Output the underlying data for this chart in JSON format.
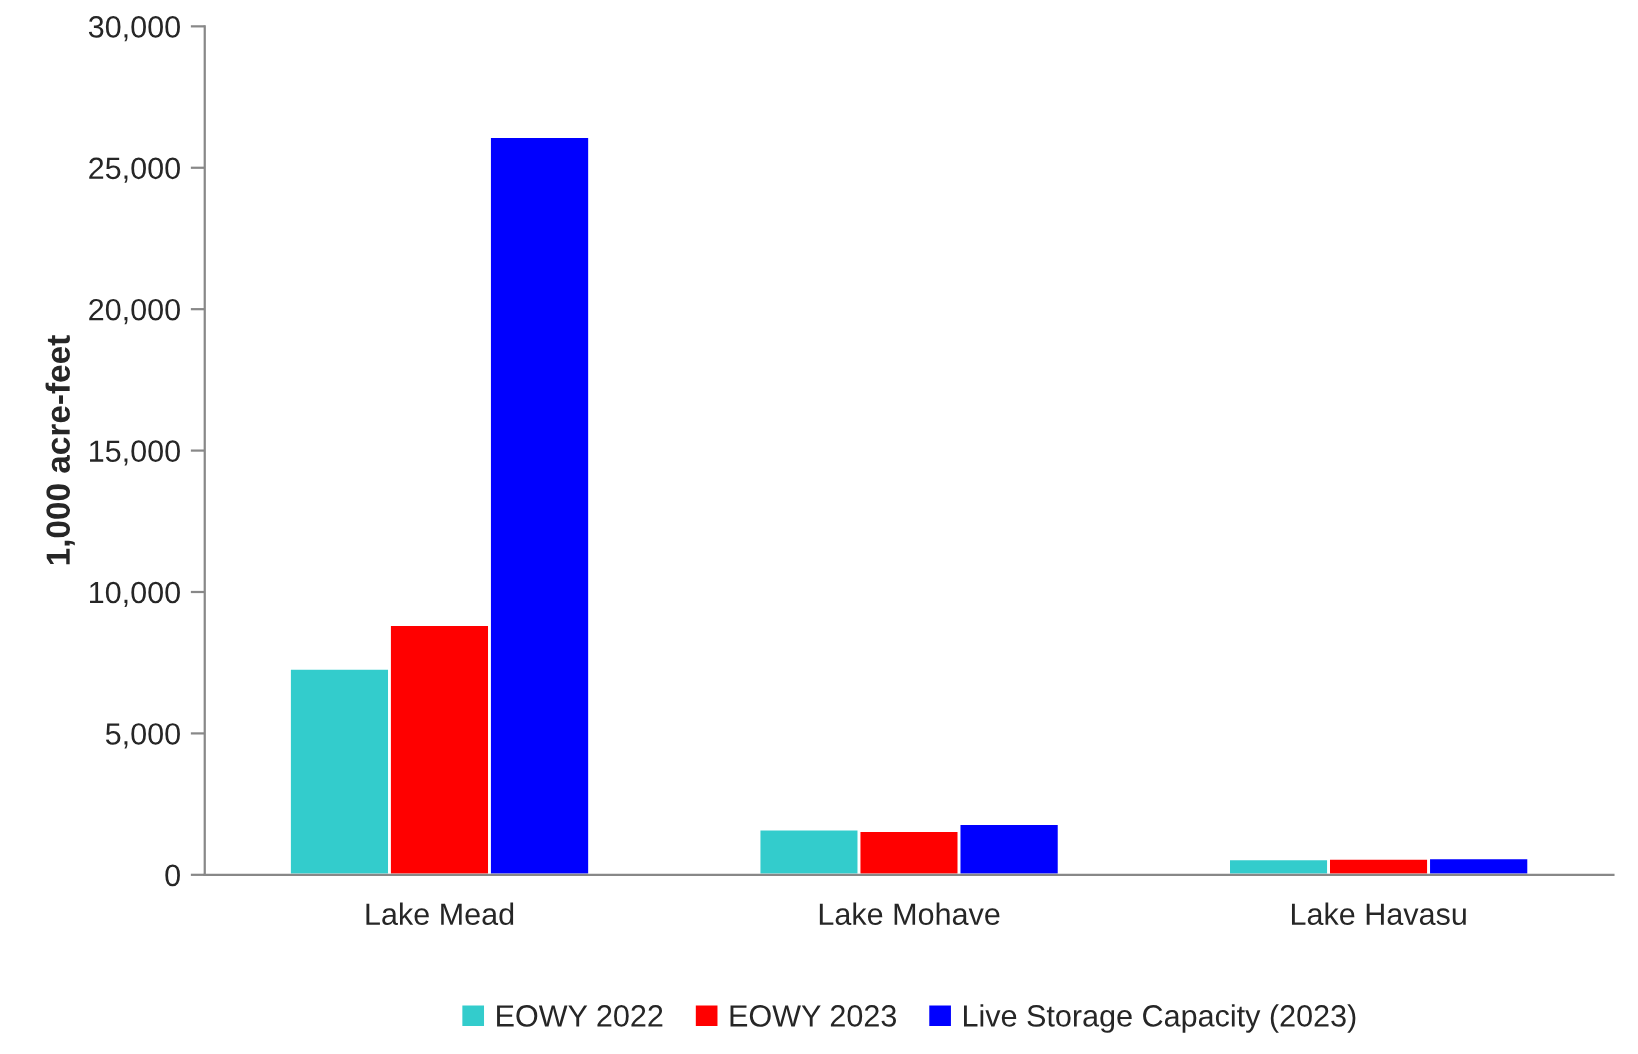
{
  "chart_data": {
    "type": "bar",
    "ylabel": "1,000 acre-feet",
    "categories": [
      "Lake Mead",
      "Lake Mohave",
      "Lake Havasu"
    ],
    "series": [
      {
        "name": "EOWY 2022",
        "color": "#33cccc",
        "values": [
          7300,
          1620,
          560
        ]
      },
      {
        "name": "EOWY 2023",
        "color": "#ff0000",
        "values": [
          8850,
          1560,
          580
        ]
      },
      {
        "name": "Live Storage Capacity (2023)",
        "color": "#0000ff",
        "values": [
          26100,
          1810,
          600
        ]
      }
    ],
    "ylim": [
      0,
      30000
    ],
    "yticks": [
      {
        "value": 0,
        "label": "0"
      },
      {
        "value": 5000,
        "label": "5,000"
      },
      {
        "value": 10000,
        "label": "10,000"
      },
      {
        "value": 15000,
        "label": "15,000"
      },
      {
        "value": 20000,
        "label": "20,000"
      },
      {
        "value": 25000,
        "label": "25,000"
      },
      {
        "value": 30000,
        "label": "30,000"
      }
    ],
    "grid": false,
    "legend": "bottom"
  }
}
